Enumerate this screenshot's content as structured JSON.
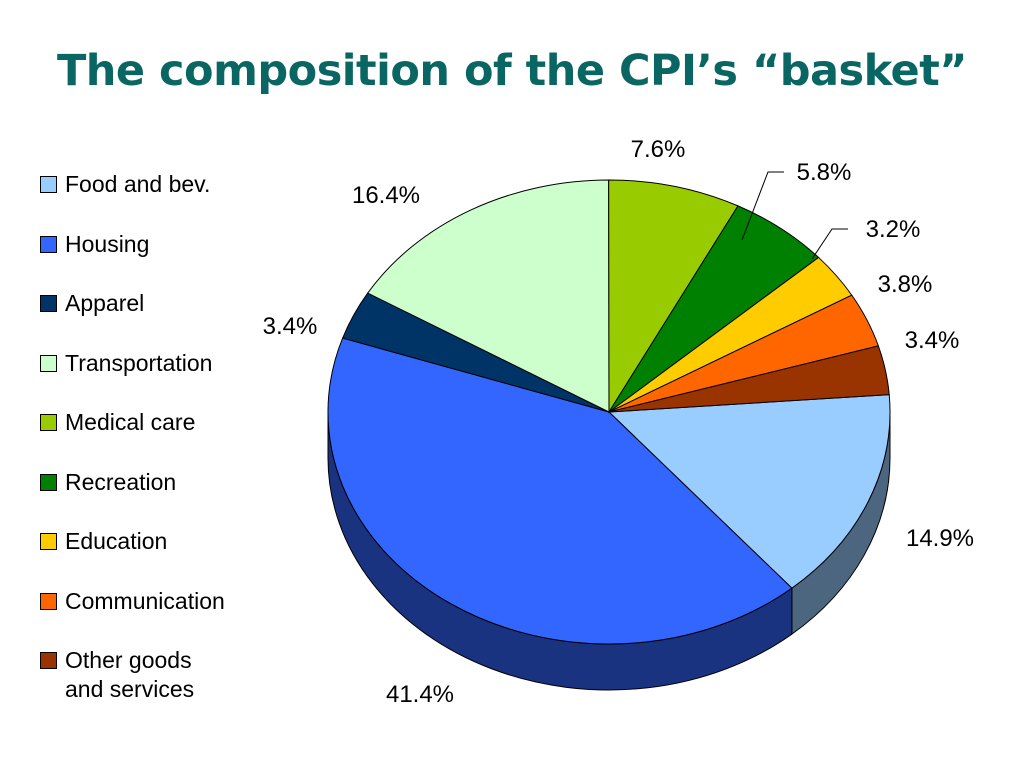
{
  "title": "The composition of the CPI’s “basket”",
  "chart_data": {
    "type": "pie",
    "title": "The composition of the CPI’s “basket”",
    "categories": [
      "Food and bev.",
      "Housing",
      "Apparel",
      "Transportation",
      "Medical care",
      "Recreation",
      "Education",
      "Communication",
      "Other goods\nand services"
    ],
    "values": [
      14.9,
      41.4,
      3.4,
      16.4,
      7.6,
      5.8,
      3.2,
      3.8,
      3.4
    ],
    "labels": [
      "14.9%",
      "41.4%",
      "3.4%",
      "16.4%",
      "7.6%",
      "5.8%",
      "3.2%",
      "3.8%",
      "3.4%"
    ],
    "colors": [
      "#99ccff",
      "#3366ff",
      "#003366",
      "#ccffcc",
      "#99cc00",
      "#008000",
      "#ffcc00",
      "#ff6600",
      "#993300"
    ],
    "legend_position": "left",
    "style": "3d"
  }
}
